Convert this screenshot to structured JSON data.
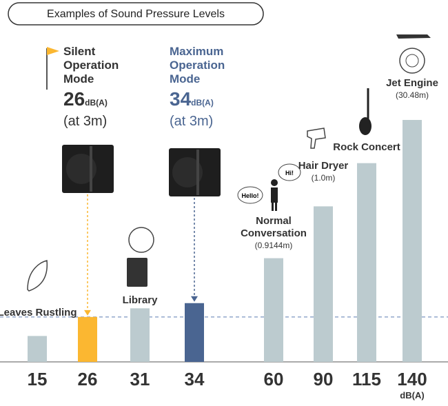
{
  "chart_data": {
    "type": "bar",
    "title": "Examples of Sound Pressure Levels",
    "categories": [
      "Leaves Rustling",
      "Silent Operation Mode",
      "Library",
      "Maximum Operation Mode",
      "Normal Conversation",
      "Hair Dryer",
      "Rock Concert",
      "Jet Engine"
    ],
    "values": [
      15,
      26,
      31,
      34,
      60,
      90,
      115,
      140
    ],
    "distances": [
      null,
      "(at 3m)",
      null,
      "(at 3m)",
      "(0.9144m)",
      "(1.0m)",
      null,
      "(30.48m)"
    ],
    "colors": [
      "#bccbcf",
      "#fbb731",
      "#bccbcf",
      "#4a6591",
      "#bccbcf",
      "#bccbcf",
      "#bccbcf",
      "#bccbcf"
    ],
    "unit": "dB(A)",
    "ylim": [
      0,
      140
    ],
    "bubbles": [
      "Hello!",
      "Hi!"
    ]
  }
}
